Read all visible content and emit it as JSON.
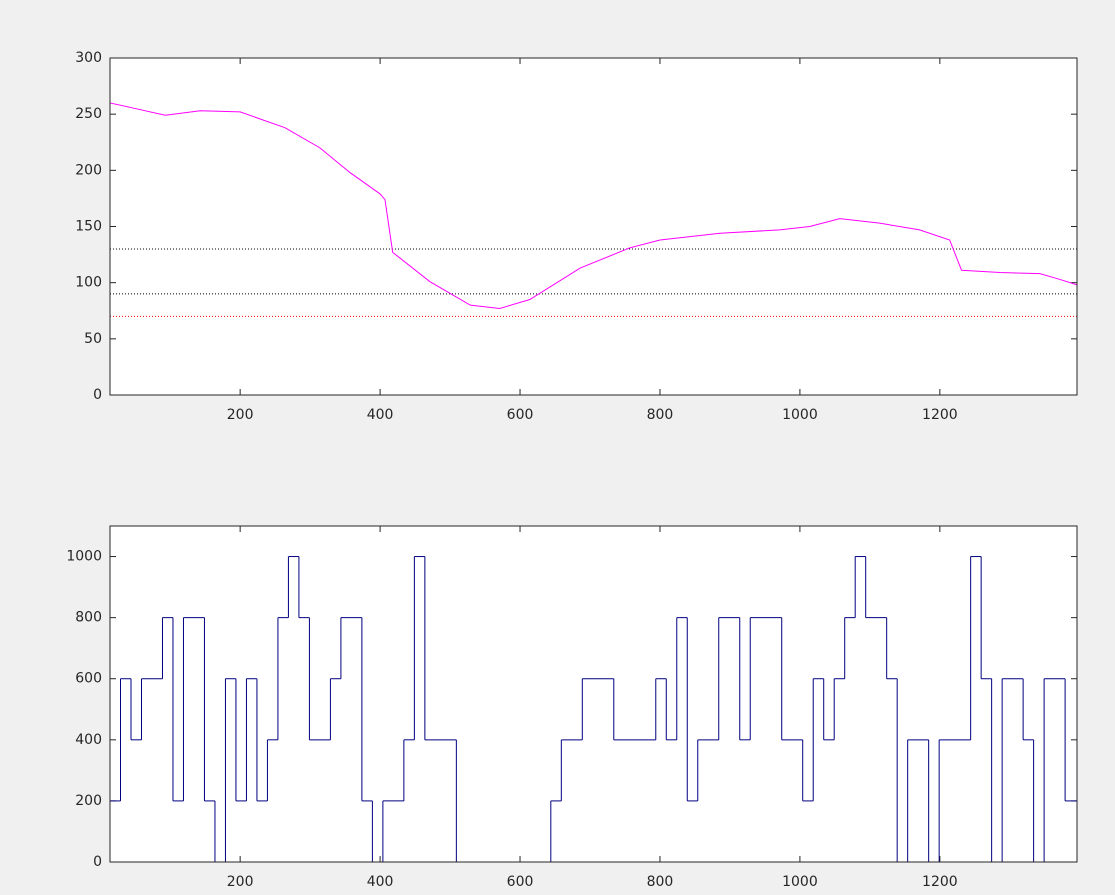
{
  "chart_data": [
    {
      "type": "line",
      "x": [
        14,
        43,
        93,
        143,
        200,
        264,
        314,
        357,
        400,
        407,
        418,
        471,
        529,
        571,
        614,
        686,
        757,
        800,
        886,
        971,
        1014,
        1057,
        1114,
        1171,
        1214,
        1231,
        1286,
        1343,
        1371,
        1396
      ],
      "series": [
        {
          "color": "#ff00ff",
          "values": [
            260,
            256,
            249,
            253,
            252,
            238,
            220,
            198,
            179,
            174,
            127,
            101,
            80,
            77,
            85,
            113,
            131,
            138,
            144,
            147,
            150,
            157,
            153,
            147,
            138,
            111,
            109,
            108,
            103,
            98
          ]
        }
      ],
      "hlines": [
        {
          "value": 130,
          "color": "#000000"
        },
        {
          "value": 90,
          "color": "#000000"
        },
        {
          "value": 70,
          "color": "#ff0000"
        }
      ],
      "xlim": [
        14,
        1396
      ],
      "xticks": [
        200,
        400,
        600,
        800,
        1000,
        1200
      ],
      "ylim": [
        0,
        300
      ],
      "yticks": [
        0,
        50,
        100,
        150,
        200,
        250,
        300
      ]
    },
    {
      "type": "stairs",
      "x": [
        14,
        29,
        44,
        59,
        89,
        104,
        119,
        149,
        164,
        179,
        194,
        209,
        224,
        239,
        254,
        269,
        284,
        299,
        329,
        344,
        374,
        389,
        404,
        434,
        449,
        464,
        509,
        644,
        659,
        689,
        734,
        794,
        809,
        824,
        839,
        854,
        884,
        914,
        929,
        974,
        1004,
        1019,
        1034,
        1049,
        1064,
        1079,
        1094,
        1124,
        1139,
        1154,
        1184,
        1199,
        1244,
        1259,
        1274,
        1289,
        1319,
        1334,
        1349,
        1379
      ],
      "series": [
        {
          "color": "#000080",
          "values": [
            200,
            600,
            400,
            600,
            800,
            200,
            800,
            200,
            0,
            600,
            200,
            600,
            200,
            400,
            800,
            1000,
            800,
            400,
            600,
            800,
            200,
            0,
            200,
            400,
            1000,
            400,
            0,
            200,
            400,
            600,
            400,
            600,
            400,
            800,
            200,
            400,
            800,
            400,
            800,
            400,
            200,
            600,
            400,
            600,
            800,
            1000,
            800,
            600,
            0,
            400,
            0,
            400,
            1000,
            600,
            0,
            600,
            400,
            0,
            600,
            200
          ]
        }
      ],
      "xlim": [
        14,
        1396
      ],
      "xticks": [
        200,
        400,
        600,
        800,
        1000,
        1200
      ],
      "ylim": [
        0,
        1100
      ],
      "yticks": [
        0,
        200,
        400,
        600,
        800,
        1000
      ]
    }
  ]
}
